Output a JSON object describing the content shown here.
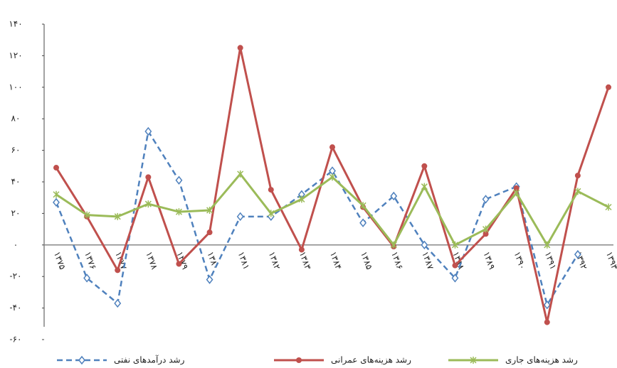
{
  "chart_data": {
    "type": "line",
    "categories": [
      "۱۳۷۵",
      "۱۳۷۶",
      "۱۳۷۷",
      "۱۳۷۸",
      "۱۳۷۹",
      "۱۳۸۰",
      "۱۳۸۱",
      "۱۳۸۲",
      "۱۳۸۳",
      "۱۳۸۴",
      "۱۳۸۵",
      "۱۳۸۶",
      "۱۳۸۷",
      "۱۳۸۸",
      "۱۳۸۹",
      "۱۳۹۰",
      "۱۳۹۱",
      "۱۳۹۲",
      "۱۳۹۳"
    ],
    "series": [
      {
        "name": "رشد درآمدهای نفتی",
        "color": "#4f81bd",
        "values": [
          27,
          -21,
          -37,
          72,
          41,
          -22,
          18,
          18,
          32,
          47,
          14,
          31,
          0,
          -21,
          29,
          37,
          -38,
          -6,
          null
        ]
      },
      {
        "name": "رشد هزینه‌های عمرانی",
        "color": "#c0504d",
        "values": [
          49,
          18,
          -16,
          43,
          -12,
          8,
          125,
          35,
          -3,
          62,
          24,
          -1,
          50,
          -13,
          7,
          36,
          -49,
          44,
          100
        ]
      },
      {
        "name": "رشد هزینه‌های جاری",
        "color": "#9bbb59",
        "values": [
          32,
          19,
          18,
          26,
          21,
          22,
          45,
          20,
          29,
          43,
          25,
          0,
          37,
          0,
          10,
          33,
          0,
          34,
          24
        ]
      }
    ],
    "ylim": [
      -60,
      140
    ],
    "yticks": [
      {
        "value": -60,
        "label": "-۶۰"
      },
      {
        "value": -40,
        "label": "-۴۰"
      },
      {
        "value": -20,
        "label": "-۲۰"
      },
      {
        "value": 0,
        "label": "۰"
      },
      {
        "value": 20,
        "label": "۲۰"
      },
      {
        "value": 40,
        "label": "۴۰"
      },
      {
        "value": 60,
        "label": "۶۰"
      },
      {
        "value": 80,
        "label": "۸۰"
      },
      {
        "value": 100,
        "label": "۱۰۰"
      },
      {
        "value": 120,
        "label": "۱۲۰"
      },
      {
        "value": 140,
        "label": "۱۴۰"
      }
    ]
  }
}
